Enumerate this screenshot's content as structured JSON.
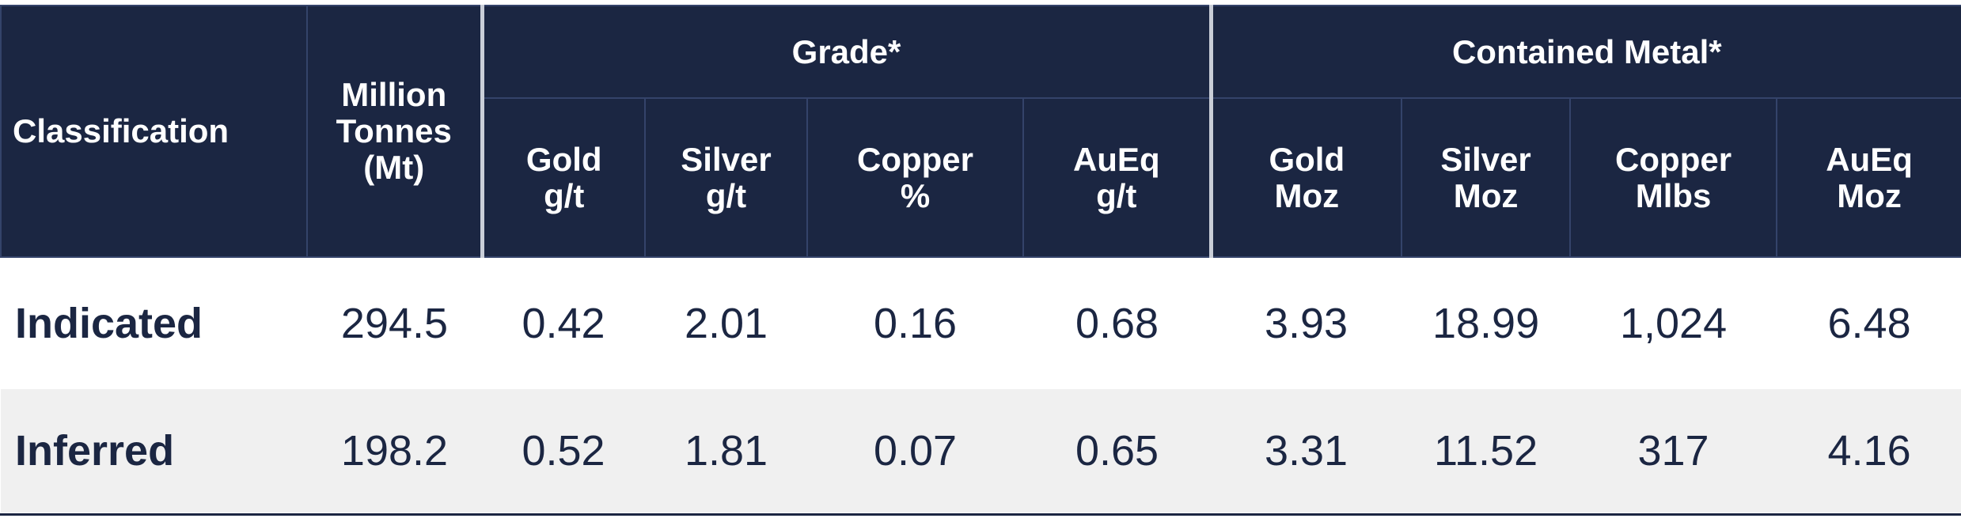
{
  "table": {
    "header": {
      "classification": "Classification",
      "tonnes": [
        "Million",
        "Tonnes",
        "(Mt)"
      ],
      "groups": [
        "Grade*",
        "Contained Metal*"
      ],
      "columns": [
        [
          "Gold",
          "g/t"
        ],
        [
          "Silver",
          "g/t"
        ],
        [
          "Copper",
          "%"
        ],
        [
          "AuEq",
          "g/t"
        ],
        [
          "Gold",
          "Moz"
        ],
        [
          "Silver",
          "Moz"
        ],
        [
          "Copper",
          "Mlbs"
        ],
        [
          "AuEq",
          "Moz"
        ]
      ]
    },
    "rows": [
      [
        "Indicated",
        "294.5",
        "0.42",
        "2.01",
        "0.16",
        "0.68",
        "3.93",
        "18.99",
        "1,024",
        "6.48"
      ],
      [
        "Inferred",
        "198.2",
        "0.52",
        "1.81",
        "0.07",
        "0.65",
        "3.31",
        "11.52",
        "317",
        "4.16"
      ]
    ]
  }
}
